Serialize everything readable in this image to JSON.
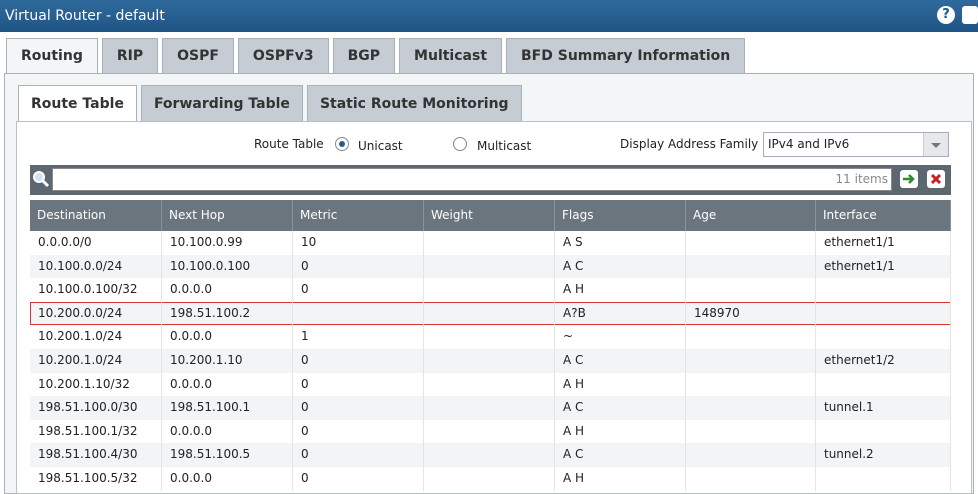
{
  "title": "Virtual Router - default",
  "tabs": [
    "Routing",
    "RIP",
    "OSPF",
    "OSPFv3",
    "BGP",
    "Multicast",
    "BFD Summary Information"
  ],
  "sub_tabs": [
    "Route Table",
    "Forwarding Table",
    "Static Route Monitoring"
  ],
  "filters": {
    "route_table_label": "Route Table",
    "options": [
      "Unicast",
      "Multicast"
    ],
    "address_family_label": "Display Address Family",
    "address_family_value": "IPv4 and IPv6"
  },
  "search": {
    "count": "11 items"
  },
  "table": {
    "columns": [
      "Destination",
      "Next Hop",
      "Metric",
      "Weight",
      "Flags",
      "Age",
      "Interface"
    ],
    "rows": [
      [
        "0.0.0.0/0",
        "10.100.0.99",
        10,
        null,
        "A S",
        null,
        "ethernet1/1"
      ],
      [
        "10.100.0.0/24",
        "10.100.0.100",
        0,
        null,
        "A C",
        null,
        "ethernet1/1"
      ],
      [
        "10.100.0.100/32",
        "0.0.0.0",
        0,
        null,
        "A H",
        null,
        null
      ],
      [
        "10.200.0.0/24",
        "198.51.100.2",
        null,
        null,
        "A?B",
        148970,
        null
      ],
      [
        "10.200.1.0/24",
        "0.0.0.0",
        1,
        null,
        "~",
        null,
        null
      ],
      [
        "10.200.1.0/24",
        "10.200.1.10",
        0,
        null,
        "A C",
        null,
        "ethernet1/2"
      ],
      [
        "10.200.1.10/32",
        "0.0.0.0",
        0,
        null,
        "A H",
        null,
        null
      ],
      [
        "198.51.100.0/30",
        "198.51.100.1",
        0,
        null,
        "A C",
        null,
        "tunnel.1"
      ],
      [
        "198.51.100.1/32",
        "0.0.0.0",
        0,
        null,
        "A H",
        null,
        null
      ],
      [
        "198.51.100.4/30",
        "198.51.100.5",
        0,
        null,
        "A C",
        null,
        "tunnel.2"
      ],
      [
        "198.51.100.5/32",
        "0.0.0.0",
        0,
        null,
        "A H",
        null,
        null
      ]
    ]
  }
}
